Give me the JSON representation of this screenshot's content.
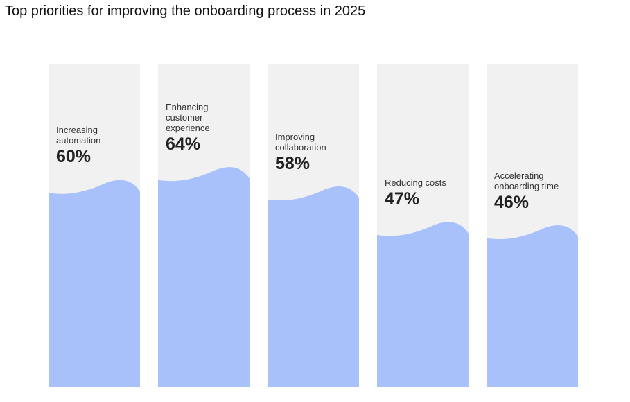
{
  "title": "Top priorities for improving the onboarding process in 2025",
  "colors": {
    "track": "#f1f1f1",
    "fill": "#a8c1fb",
    "text": "#222222"
  },
  "chart_data": {
    "type": "bar",
    "title": "Top priorities for improving the onboarding process in 2025",
    "categories": [
      "Increasing\nautomation",
      "Enhancing\ncustomer\nexperience",
      "Improving\ncollaboration",
      "Reducing costs",
      "Accelerating\nonboarding time"
    ],
    "values": [
      60,
      64,
      58,
      47,
      46
    ],
    "value_labels": [
      "60%",
      "64%",
      "58%",
      "47%",
      "46%"
    ],
    "ylim": [
      0,
      100
    ],
    "xlabel": "",
    "ylabel": "",
    "grid": false,
    "legend": "none"
  }
}
